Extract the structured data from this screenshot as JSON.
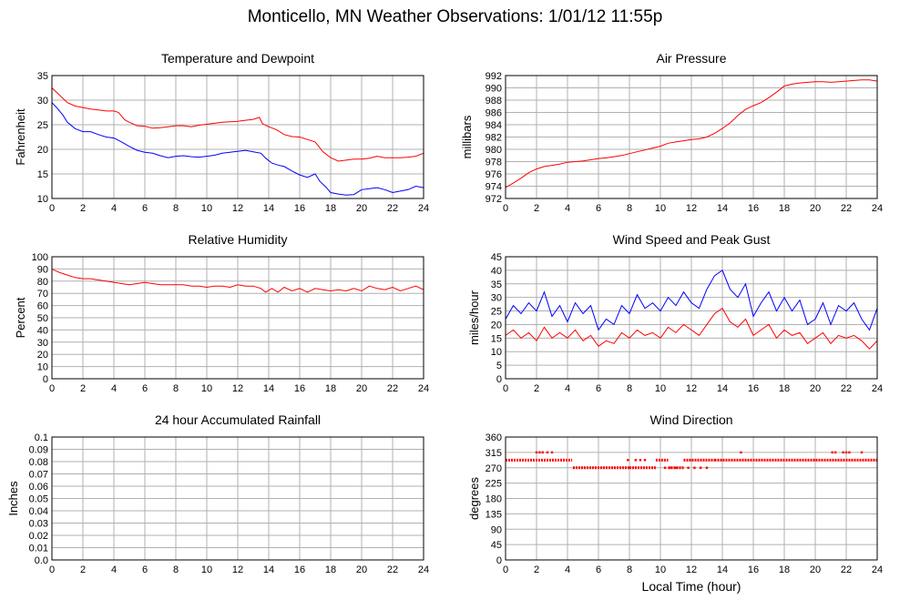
{
  "page": {
    "title": "Monticello, MN Weather Observations: 1/01/12 11:55p",
    "xlabel_common": "Local Time (hour)"
  },
  "colors": {
    "red": "#ff0000",
    "blue": "#0000ff",
    "grid": "#b0b0b0"
  },
  "chart_data": [
    {
      "id": "temp",
      "type": "line",
      "title": "Temperature and Dewpoint",
      "ylabel": "Fahrenheit",
      "xlim": [
        0,
        24
      ],
      "ylim": [
        10,
        35
      ],
      "xticks": [
        0,
        2,
        4,
        6,
        8,
        10,
        12,
        14,
        16,
        18,
        20,
        22,
        24
      ],
      "yticks": [
        10,
        15,
        20,
        25,
        30,
        35
      ],
      "grid": true,
      "series": [
        {
          "color": "#ff0000",
          "x": [
            0,
            0.5,
            1,
            1.5,
            2,
            2.5,
            3,
            3.5,
            4,
            4.3,
            4.7,
            5,
            5.5,
            6,
            6.5,
            7,
            7.5,
            8,
            8.5,
            9,
            9.5,
            10,
            10.5,
            11,
            11.5,
            12,
            12.5,
            13,
            13.4,
            13.6,
            14,
            14.5,
            15,
            15.5,
            16,
            16.5,
            17,
            17.5,
            18,
            18.5,
            19,
            19.5,
            20,
            20.5,
            21,
            21.5,
            22,
            22.5,
            23,
            23.5,
            24
          ],
          "y": [
            32.5,
            31,
            29.5,
            28.8,
            28.5,
            28.2,
            28,
            27.8,
            27.8,
            27.5,
            26,
            25.5,
            24.8,
            24.7,
            24.3,
            24.4,
            24.6,
            24.8,
            24.8,
            24.6,
            24.9,
            25.1,
            25.3,
            25.5,
            25.6,
            25.7,
            25.9,
            26.1,
            26.5,
            25.2,
            24.6,
            24,
            23,
            22.6,
            22.5,
            22,
            21.5,
            19.5,
            18.3,
            17.6,
            17.8,
            18,
            18,
            18.2,
            18.6,
            18.3,
            18.3,
            18.3,
            18.4,
            18.6,
            19.2
          ]
        },
        {
          "color": "#0000ff",
          "x": [
            0,
            0.3,
            0.7,
            1,
            1.5,
            2,
            2.5,
            3,
            3.5,
            4,
            4.5,
            5,
            5.5,
            6,
            6.5,
            7,
            7.5,
            8,
            8.5,
            9,
            9.5,
            10,
            10.5,
            11,
            11.5,
            12,
            12.5,
            13,
            13.5,
            13.8,
            14.2,
            14.6,
            15,
            15.5,
            16,
            16.5,
            17,
            17.3,
            17.7,
            18,
            18.5,
            19,
            19.5,
            20,
            20.5,
            21,
            21.5,
            22,
            22.5,
            23,
            23.5,
            24
          ],
          "y": [
            29.5,
            28.5,
            27,
            25.5,
            24.2,
            23.6,
            23.6,
            23,
            22.5,
            22.3,
            21.5,
            20.6,
            19.8,
            19.4,
            19.2,
            18.7,
            18.3,
            18.6,
            18.7,
            18.5,
            18.4,
            18.6,
            18.8,
            19.2,
            19.4,
            19.6,
            19.8,
            19.5,
            19.2,
            18.2,
            17.2,
            16.8,
            16.5,
            15.6,
            14.8,
            14.3,
            15,
            13.5,
            12.3,
            11.2,
            10.9,
            10.7,
            10.8,
            11.8,
            12,
            12.2,
            11.8,
            11.2,
            11.5,
            11.8,
            12.5,
            12.2
          ]
        }
      ]
    },
    {
      "id": "pressure",
      "type": "line",
      "title": "Air Pressure",
      "ylabel": "millibars",
      "xlim": [
        0,
        24
      ],
      "ylim": [
        972,
        992
      ],
      "xticks": [
        0,
        2,
        4,
        6,
        8,
        10,
        12,
        14,
        16,
        18,
        20,
        22,
        24
      ],
      "yticks": [
        972,
        974,
        976,
        978,
        980,
        982,
        984,
        986,
        988,
        990,
        992
      ],
      "grid": true,
      "series": [
        {
          "color": "#ff0000",
          "x": [
            0,
            0.5,
            1,
            1.5,
            2,
            2.5,
            3,
            3.5,
            4,
            4.5,
            5,
            5.5,
            6,
            6.5,
            7,
            7.5,
            8,
            8.5,
            9,
            9.5,
            10,
            10.5,
            11,
            11.5,
            12,
            12.5,
            13,
            13.5,
            14,
            14.5,
            15,
            15.5,
            16,
            16.5,
            17,
            17.5,
            18,
            18.5,
            19,
            19.5,
            20,
            20.5,
            21,
            21.5,
            22,
            22.5,
            23,
            23.5,
            24
          ],
          "y": [
            973.8,
            974.5,
            975.3,
            976.2,
            976.8,
            977.2,
            977.4,
            977.6,
            977.9,
            978,
            978.1,
            978.3,
            978.5,
            978.6,
            978.8,
            979,
            979.3,
            979.6,
            979.9,
            980.2,
            980.5,
            981,
            981.2,
            981.4,
            981.6,
            981.7,
            982,
            982.6,
            983.4,
            984.3,
            985.5,
            986.5,
            987.1,
            987.6,
            988.4,
            989.3,
            990.3,
            990.6,
            990.8,
            990.9,
            991,
            991,
            990.9,
            991,
            991.1,
            991.2,
            991.3,
            991.3,
            991.1
          ]
        }
      ]
    },
    {
      "id": "humidity",
      "type": "line",
      "title": "Relative Humidity",
      "ylabel": "Percent",
      "xlim": [
        0,
        24
      ],
      "ylim": [
        0,
        100
      ],
      "xticks": [
        0,
        2,
        4,
        6,
        8,
        10,
        12,
        14,
        16,
        18,
        20,
        22,
        24
      ],
      "yticks": [
        0,
        10,
        20,
        30,
        40,
        50,
        60,
        70,
        80,
        90,
        100
      ],
      "grid": true,
      "series": [
        {
          "color": "#ff0000",
          "x": [
            0,
            0.5,
            1,
            1.5,
            2,
            2.5,
            3,
            3.5,
            4,
            4.5,
            5,
            5.5,
            6,
            6.5,
            7,
            7.5,
            8,
            8.5,
            9,
            9.5,
            10,
            10.5,
            11,
            11.5,
            12,
            12.5,
            13,
            13.5,
            13.8,
            14.2,
            14.6,
            15,
            15.5,
            16,
            16.5,
            17,
            17.5,
            18,
            18.5,
            19,
            19.5,
            20,
            20.5,
            21,
            21.5,
            22,
            22.5,
            23,
            23.5,
            24
          ],
          "y": [
            90,
            87,
            85,
            83,
            82,
            82,
            81,
            80,
            79,
            78,
            77,
            78,
            79,
            78,
            77,
            77,
            77,
            77,
            76,
            76,
            75,
            76,
            76,
            75,
            77,
            76,
            76,
            74,
            71,
            74,
            71,
            75,
            72,
            74,
            71,
            74,
            73,
            72,
            73,
            72,
            74,
            72,
            76,
            74,
            73,
            75,
            72,
            74,
            76,
            73
          ]
        }
      ]
    },
    {
      "id": "wind",
      "type": "line",
      "title": "Wind Speed and Peak Gust",
      "ylabel": "miles/hour",
      "xlim": [
        0,
        24
      ],
      "ylim": [
        0,
        45
      ],
      "xticks": [
        0,
        2,
        4,
        6,
        8,
        10,
        12,
        14,
        16,
        18,
        20,
        22,
        24
      ],
      "yticks": [
        0,
        5,
        10,
        15,
        20,
        25,
        30,
        35,
        40,
        45
      ],
      "grid": true,
      "series": [
        {
          "color": "#0000ff",
          "x": [
            0,
            0.5,
            1,
            1.5,
            2,
            2.5,
            3,
            3.5,
            4,
            4.5,
            5,
            5.5,
            6,
            6.5,
            7,
            7.5,
            8,
            8.5,
            9,
            9.5,
            10,
            10.5,
            11,
            11.5,
            12,
            12.5,
            13,
            13.5,
            14,
            14.5,
            15,
            15.5,
            16,
            16.5,
            17,
            17.5,
            18,
            18.5,
            19,
            19.5,
            20,
            20.5,
            21,
            21.5,
            22,
            22.5,
            23,
            23.5,
            24
          ],
          "y": [
            22,
            27,
            24,
            28,
            25,
            32,
            23,
            27,
            21,
            28,
            24,
            27,
            18,
            22,
            20,
            27,
            24,
            31,
            26,
            28,
            25,
            30,
            27,
            32,
            28,
            26,
            33,
            38,
            40,
            33,
            30,
            35,
            23,
            28,
            32,
            25,
            30,
            25,
            29,
            20,
            22,
            28,
            20,
            27,
            25,
            28,
            22,
            18,
            26
          ]
        },
        {
          "color": "#ff0000",
          "x": [
            0,
            0.5,
            1,
            1.5,
            2,
            2.5,
            3,
            3.5,
            4,
            4.5,
            5,
            5.5,
            6,
            6.5,
            7,
            7.5,
            8,
            8.5,
            9,
            9.5,
            10,
            10.5,
            11,
            11.5,
            12,
            12.5,
            13,
            13.5,
            14,
            14.5,
            15,
            15.5,
            16,
            16.5,
            17,
            17.5,
            18,
            18.5,
            19,
            19.5,
            20,
            20.5,
            21,
            21.5,
            22,
            22.5,
            23,
            23.5,
            24
          ],
          "y": [
            16,
            18,
            15,
            17,
            14,
            19,
            15,
            17,
            15,
            18,
            14,
            16,
            12,
            14,
            13,
            17,
            15,
            18,
            16,
            17,
            15,
            19,
            17,
            20,
            18,
            16,
            20,
            24,
            26,
            21,
            19,
            22,
            16,
            18,
            20,
            15,
            18,
            16,
            17,
            13,
            15,
            17,
            13,
            16,
            15,
            16,
            14,
            11,
            14
          ]
        }
      ]
    },
    {
      "id": "rain",
      "type": "line",
      "title": "24 hour Accumulated Rainfall",
      "ylabel": "Inches",
      "xlim": [
        0,
        24
      ],
      "ylim": [
        0,
        0.1
      ],
      "xticks": [
        0,
        2,
        4,
        6,
        8,
        10,
        12,
        14,
        16,
        18,
        20,
        22,
        24
      ],
      "yticks": [
        0.0,
        0.01,
        0.02,
        0.03,
        0.04,
        0.05,
        0.06,
        0.07,
        0.08,
        0.09,
        0.1
      ],
      "ytick_labels": [
        "0.0",
        "0.01",
        "0.02",
        "0.03",
        "0.04",
        "0.05",
        "0.06",
        "0.07",
        "0.08",
        "0.09",
        "0.1"
      ],
      "grid": true,
      "series": [
        {
          "color": "#ff0000",
          "x": [
            0,
            24
          ],
          "y": [
            0,
            0
          ]
        }
      ]
    },
    {
      "id": "direction",
      "type": "scatter",
      "title": "Wind Direction",
      "ylabel": "degrees",
      "xlabel": "Local Time (hour)",
      "xlim": [
        0,
        24
      ],
      "ylim": [
        0,
        360
      ],
      "xticks": [
        0,
        2,
        4,
        6,
        8,
        10,
        12,
        14,
        16,
        18,
        20,
        22,
        24
      ],
      "yticks": [
        0,
        45,
        90,
        135,
        180,
        225,
        270,
        315,
        360
      ],
      "grid": true,
      "series": [
        {
          "color": "#ff0000",
          "segments": [
            {
              "x": [
                0,
                4.3
              ],
              "y": 292.5
            },
            {
              "x": [
                4.35,
                8.0
              ],
              "y": 270
            },
            {
              "x": [
                8.0,
                9.7
              ],
              "y": 270
            },
            {
              "x": [
                9.7,
                10.5
              ],
              "y": 292.5
            },
            {
              "x": [
                10.5,
                11.5
              ],
              "y": 270
            },
            {
              "x": [
                11.5,
                13.5
              ],
              "y": 292.5
            },
            {
              "x": [
                13.5,
                24
              ],
              "y": 292.5
            }
          ],
          "points": [
            [
              2.0,
              315
            ],
            [
              2.2,
              315
            ],
            [
              2.4,
              315
            ],
            [
              2.7,
              315
            ],
            [
              3.0,
              315
            ],
            [
              7.9,
              292.5
            ],
            [
              8.4,
              292.5
            ],
            [
              8.7,
              292.5
            ],
            [
              9.0,
              292.5
            ],
            [
              10.3,
              270
            ],
            [
              10.6,
              270
            ],
            [
              11.0,
              270
            ],
            [
              11.8,
              270
            ],
            [
              12.2,
              270
            ],
            [
              12.6,
              270
            ],
            [
              13.0,
              270
            ],
            [
              15.2,
              315
            ],
            [
              21.1,
              315
            ],
            [
              21.3,
              315
            ],
            [
              21.8,
              315
            ],
            [
              22.0,
              315
            ],
            [
              22.2,
              315
            ],
            [
              23.0,
              315
            ]
          ]
        }
      ]
    }
  ]
}
